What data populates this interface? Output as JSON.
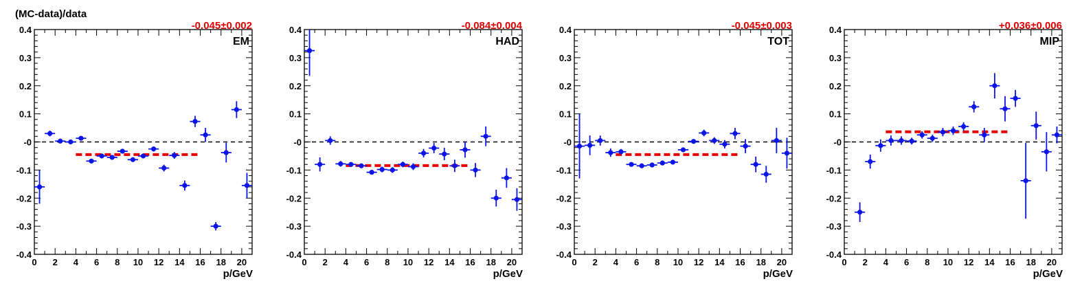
{
  "chart_data": [
    {
      "type": "scatter",
      "panel_label": "EM",
      "ylabel": "(MC-data)/data",
      "xlabel": "p/GeV",
      "fit_label": "-0.045±0.002",
      "fit_value": -0.045,
      "fit_range": [
        4,
        16
      ],
      "xlim": [
        0,
        21
      ],
      "ylim": [
        -0.4,
        0.4
      ],
      "x_ticks": [
        "0",
        "2",
        "4",
        "6",
        "8",
        "10",
        "12",
        "14",
        "16",
        "18",
        "20"
      ],
      "y_ticks": [
        "-0.4",
        "-0.3",
        "-0.2",
        "-0.1",
        "-0",
        "0.1",
        "0.2",
        "0.3",
        "0.4"
      ],
      "points": [
        {
          "x": 0.5,
          "y": -0.16,
          "err": 0.06
        },
        {
          "x": 1.5,
          "y": 0.03,
          "err": 0.01
        },
        {
          "x": 2.5,
          "y": 0.003,
          "err": 0.006
        },
        {
          "x": 3.5,
          "y": 0.0,
          "err": 0.005
        },
        {
          "x": 4.5,
          "y": 0.013,
          "err": 0.006
        },
        {
          "x": 5.5,
          "y": -0.068,
          "err": 0.007
        },
        {
          "x": 6.5,
          "y": -0.05,
          "err": 0.007
        },
        {
          "x": 7.5,
          "y": -0.055,
          "err": 0.008
        },
        {
          "x": 8.5,
          "y": -0.033,
          "err": 0.008
        },
        {
          "x": 9.5,
          "y": -0.063,
          "err": 0.008
        },
        {
          "x": 10.5,
          "y": -0.05,
          "err": 0.008
        },
        {
          "x": 11.5,
          "y": -0.025,
          "err": 0.009
        },
        {
          "x": 12.5,
          "y": -0.093,
          "err": 0.012
        },
        {
          "x": 13.5,
          "y": -0.048,
          "err": 0.012
        },
        {
          "x": 14.5,
          "y": -0.155,
          "err": 0.018
        },
        {
          "x": 15.5,
          "y": 0.073,
          "err": 0.02
        },
        {
          "x": 16.5,
          "y": 0.025,
          "err": 0.025
        },
        {
          "x": 17.5,
          "y": -0.3,
          "err": 0.015
        },
        {
          "x": 18.5,
          "y": -0.038,
          "err": 0.035
        },
        {
          "x": 19.5,
          "y": 0.115,
          "err": 0.03
        },
        {
          "x": 20.5,
          "y": -0.155,
          "err": 0.045
        }
      ]
    },
    {
      "type": "scatter",
      "panel_label": "HAD",
      "xlabel": "p/GeV",
      "fit_label": "-0.084±0.004",
      "fit_value": -0.084,
      "fit_range": [
        4,
        16
      ],
      "xlim": [
        0,
        21
      ],
      "ylim": [
        -0.4,
        0.4
      ],
      "x_ticks": [
        "0",
        "2",
        "4",
        "6",
        "8",
        "10",
        "12",
        "14",
        "16",
        "18",
        "20"
      ],
      "y_ticks": [
        "-0.4",
        "-0.3",
        "-0.2",
        "-0.1",
        "-0",
        "0.1",
        "0.2",
        "0.3",
        "0.4"
      ],
      "points": [
        {
          "x": 0.5,
          "y": 0.325,
          "err": 0.09
        },
        {
          "x": 1.5,
          "y": -0.08,
          "err": 0.025
        },
        {
          "x": 2.5,
          "y": 0.005,
          "err": 0.015
        },
        {
          "x": 3.5,
          "y": -0.078,
          "err": 0.01
        },
        {
          "x": 4.5,
          "y": -0.08,
          "err": 0.008
        },
        {
          "x": 5.5,
          "y": -0.085,
          "err": 0.008
        },
        {
          "x": 6.5,
          "y": -0.108,
          "err": 0.008
        },
        {
          "x": 7.5,
          "y": -0.098,
          "err": 0.01
        },
        {
          "x": 8.5,
          "y": -0.1,
          "err": 0.01
        },
        {
          "x": 9.5,
          "y": -0.08,
          "err": 0.01
        },
        {
          "x": 10.5,
          "y": -0.088,
          "err": 0.012
        },
        {
          "x": 11.5,
          "y": -0.04,
          "err": 0.015
        },
        {
          "x": 12.5,
          "y": -0.022,
          "err": 0.018
        },
        {
          "x": 13.5,
          "y": -0.043,
          "err": 0.022
        },
        {
          "x": 14.5,
          "y": -0.085,
          "err": 0.022
        },
        {
          "x": 15.5,
          "y": -0.028,
          "err": 0.028
        },
        {
          "x": 16.5,
          "y": -0.1,
          "err": 0.025
        },
        {
          "x": 17.5,
          "y": 0.02,
          "err": 0.035
        },
        {
          "x": 18.5,
          "y": -0.2,
          "err": 0.03
        },
        {
          "x": 19.5,
          "y": -0.128,
          "err": 0.035
        },
        {
          "x": 20.5,
          "y": -0.205,
          "err": 0.04
        }
      ]
    },
    {
      "type": "scatter",
      "panel_label": "TOT",
      "xlabel": "p/GeV",
      "fit_label": "-0.045±0.003",
      "fit_value": -0.045,
      "fit_range": [
        4,
        16
      ],
      "xlim": [
        0,
        21
      ],
      "ylim": [
        -0.4,
        0.4
      ],
      "x_ticks": [
        "0",
        "2",
        "4",
        "6",
        "8",
        "10",
        "12",
        "14",
        "16",
        "18",
        "20"
      ],
      "y_ticks": [
        "-0.4",
        "-0.3",
        "-0.2",
        "-0.1",
        "-0",
        "0.1",
        "0.2",
        "0.3",
        "0.4"
      ],
      "points": [
        {
          "x": 0.5,
          "y": -0.015,
          "err": 0.115
        },
        {
          "x": 1.5,
          "y": -0.012,
          "err": 0.035
        },
        {
          "x": 2.5,
          "y": 0.005,
          "err": 0.018
        },
        {
          "x": 3.5,
          "y": -0.038,
          "err": 0.015
        },
        {
          "x": 4.5,
          "y": -0.035,
          "err": 0.01
        },
        {
          "x": 5.5,
          "y": -0.08,
          "err": 0.008
        },
        {
          "x": 6.5,
          "y": -0.085,
          "err": 0.008
        },
        {
          "x": 7.5,
          "y": -0.082,
          "err": 0.008
        },
        {
          "x": 8.5,
          "y": -0.075,
          "err": 0.008
        },
        {
          "x": 9.5,
          "y": -0.072,
          "err": 0.008
        },
        {
          "x": 10.5,
          "y": -0.028,
          "err": 0.008
        },
        {
          "x": 11.5,
          "y": 0.002,
          "err": 0.008
        },
        {
          "x": 12.5,
          "y": 0.032,
          "err": 0.012
        },
        {
          "x": 13.5,
          "y": 0.005,
          "err": 0.012
        },
        {
          "x": 14.5,
          "y": -0.008,
          "err": 0.015
        },
        {
          "x": 15.5,
          "y": 0.03,
          "err": 0.02
        },
        {
          "x": 16.5,
          "y": -0.015,
          "err": 0.025
        },
        {
          "x": 17.5,
          "y": -0.08,
          "err": 0.028
        },
        {
          "x": 18.5,
          "y": -0.115,
          "err": 0.03
        },
        {
          "x": 19.5,
          "y": 0.005,
          "err": 0.045
        },
        {
          "x": 20.5,
          "y": -0.04,
          "err": 0.055
        }
      ]
    },
    {
      "type": "scatter",
      "panel_label": "MIP",
      "xlabel": "p/GeV",
      "fit_label": "+0.036±0.006",
      "fit_value": 0.036,
      "fit_range": [
        4,
        16
      ],
      "xlim": [
        0,
        21
      ],
      "ylim": [
        -0.4,
        0.4
      ],
      "x_ticks": [
        "0",
        "2",
        "4",
        "6",
        "8",
        "10",
        "12",
        "14",
        "16",
        "18",
        "20"
      ],
      "y_ticks": [
        "-0.4",
        "-0.3",
        "-0.2",
        "-0.1",
        "-0",
        "0.1",
        "0.2",
        "0.3",
        "0.4"
      ],
      "points": [
        {
          "x": 1.5,
          "y": -0.25,
          "err": 0.035
        },
        {
          "x": 2.5,
          "y": -0.07,
          "err": 0.025
        },
        {
          "x": 3.5,
          "y": -0.013,
          "err": 0.022
        },
        {
          "x": 4.5,
          "y": 0.005,
          "err": 0.018
        },
        {
          "x": 5.5,
          "y": 0.005,
          "err": 0.015
        },
        {
          "x": 6.5,
          "y": 0.003,
          "err": 0.012
        },
        {
          "x": 7.5,
          "y": 0.025,
          "err": 0.013
        },
        {
          "x": 8.5,
          "y": 0.013,
          "err": 0.013
        },
        {
          "x": 9.5,
          "y": 0.035,
          "err": 0.015
        },
        {
          "x": 10.5,
          "y": 0.04,
          "err": 0.015
        },
        {
          "x": 11.5,
          "y": 0.055,
          "err": 0.015
        },
        {
          "x": 12.5,
          "y": 0.125,
          "err": 0.02
        },
        {
          "x": 13.5,
          "y": 0.025,
          "err": 0.025
        },
        {
          "x": 14.5,
          "y": 0.2,
          "err": 0.045
        },
        {
          "x": 15.5,
          "y": 0.118,
          "err": 0.045
        },
        {
          "x": 16.5,
          "y": 0.155,
          "err": 0.03
        },
        {
          "x": 17.5,
          "y": -0.138,
          "err": 0.135
        },
        {
          "x": 18.5,
          "y": 0.058,
          "err": 0.05
        },
        {
          "x": 19.5,
          "y": -0.035,
          "err": 0.07
        },
        {
          "x": 20.5,
          "y": 0.025,
          "err": 0.03
        }
      ]
    }
  ],
  "colors": {
    "points": "#0a14e6",
    "fit": "#e80000",
    "zero_line": "#000000",
    "axes": "#000000",
    "fit_label": "#e00000"
  }
}
